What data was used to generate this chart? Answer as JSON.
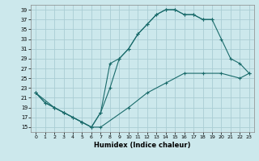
{
  "xlabel": "Humidex (Indice chaleur)",
  "bg_color": "#cce8ec",
  "grid_color": "#aacdd4",
  "line_color": "#1a6b6b",
  "xlim": [
    -0.5,
    23.5
  ],
  "ylim": [
    14,
    40
  ],
  "xticks": [
    0,
    1,
    2,
    3,
    4,
    5,
    6,
    7,
    8,
    9,
    10,
    11,
    12,
    13,
    14,
    15,
    16,
    17,
    18,
    19,
    20,
    21,
    22,
    23
  ],
  "yticks": [
    15,
    17,
    19,
    21,
    23,
    25,
    27,
    29,
    31,
    33,
    35,
    37,
    39
  ],
  "line1_x": [
    0,
    1,
    2,
    3,
    4,
    5,
    6,
    7,
    8,
    9,
    10,
    11,
    12,
    13,
    14,
    15,
    16,
    17,
    18,
    19
  ],
  "line1_y": [
    22,
    20,
    19,
    18,
    17,
    16,
    15,
    18,
    28,
    29,
    31,
    34,
    36,
    38,
    39,
    39,
    38,
    38,
    37,
    37
  ],
  "line2_x": [
    0,
    1,
    2,
    3,
    4,
    5,
    6,
    7,
    8,
    9,
    10,
    11,
    12,
    13,
    14,
    15,
    16,
    17,
    18,
    19,
    20,
    21,
    22,
    23
  ],
  "line2_y": [
    22,
    20,
    19,
    18,
    17,
    16,
    15,
    18,
    23,
    29,
    31,
    34,
    36,
    38,
    39,
    39,
    38,
    38,
    37,
    37,
    33,
    29,
    28,
    26
  ],
  "line3_x": [
    0,
    2,
    3,
    5,
    6,
    7,
    10,
    12,
    14,
    16,
    18,
    20,
    22,
    23
  ],
  "line3_y": [
    22,
    19,
    18,
    16,
    15,
    15,
    19,
    22,
    24,
    26,
    26,
    26,
    25,
    26
  ]
}
